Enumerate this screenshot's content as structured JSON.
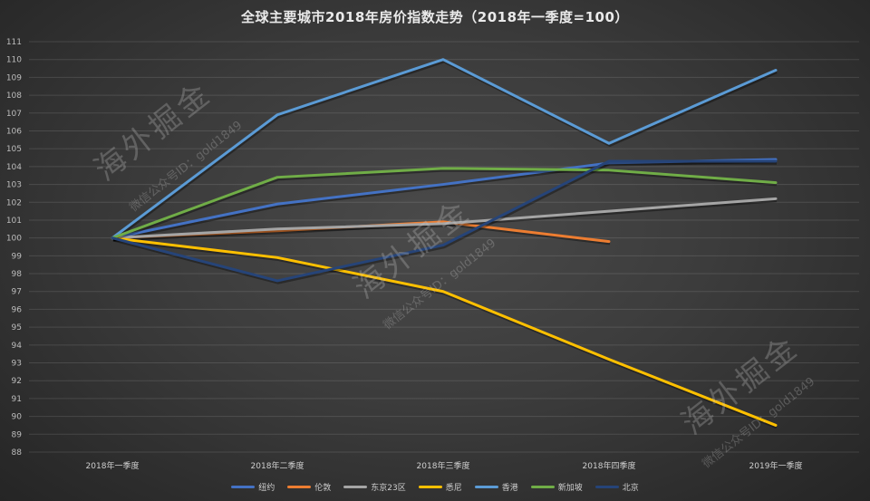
{
  "title": "全球主要城市2018年房价指数走势（2018年一季度=100）",
  "watermark": {
    "brand": "海外掘金",
    "subtitle": "微信公众号ID：gold1849"
  },
  "chart_data": {
    "type": "line",
    "title": "全球主要城市2018年房价指数走势（2018年一季度=100）",
    "xlabel": "",
    "ylabel": "",
    "categories": [
      "2018年一季度",
      "2018年二季度",
      "2018年三季度",
      "2018年四季度",
      "2019年一季度"
    ],
    "ylim": [
      88,
      111
    ],
    "yticks": [
      88,
      89,
      90,
      91,
      92,
      93,
      94,
      95,
      96,
      97,
      98,
      99,
      100,
      101,
      102,
      103,
      104,
      105,
      106,
      107,
      108,
      109,
      110,
      111
    ],
    "grid": true,
    "legend_position": "bottom",
    "series": [
      {
        "name": "纽约",
        "color": "#4472c4",
        "values": [
          100,
          101.9,
          103.0,
          104.2,
          104.4
        ]
      },
      {
        "name": "伦敦",
        "color": "#ed7d31",
        "values": [
          100,
          100.4,
          100.9,
          99.8,
          null
        ]
      },
      {
        "name": "东京23区",
        "color": "#a5a5a5",
        "values": [
          100,
          100.5,
          100.8,
          101.5,
          102.2
        ]
      },
      {
        "name": "悉尼",
        "color": "#ffc000",
        "values": [
          100,
          98.9,
          97.0,
          93.2,
          89.5
        ]
      },
      {
        "name": "香港",
        "color": "#5b9bd5",
        "values": [
          100,
          106.9,
          110.0,
          105.3,
          109.4
        ]
      },
      {
        "name": "新加坡",
        "color": "#70ad47",
        "values": [
          100,
          103.4,
          103.9,
          103.8,
          103.1
        ]
      },
      {
        "name": "北京",
        "color": "#264478",
        "values": [
          100,
          97.6,
          99.6,
          104.3,
          104.3
        ]
      }
    ]
  }
}
